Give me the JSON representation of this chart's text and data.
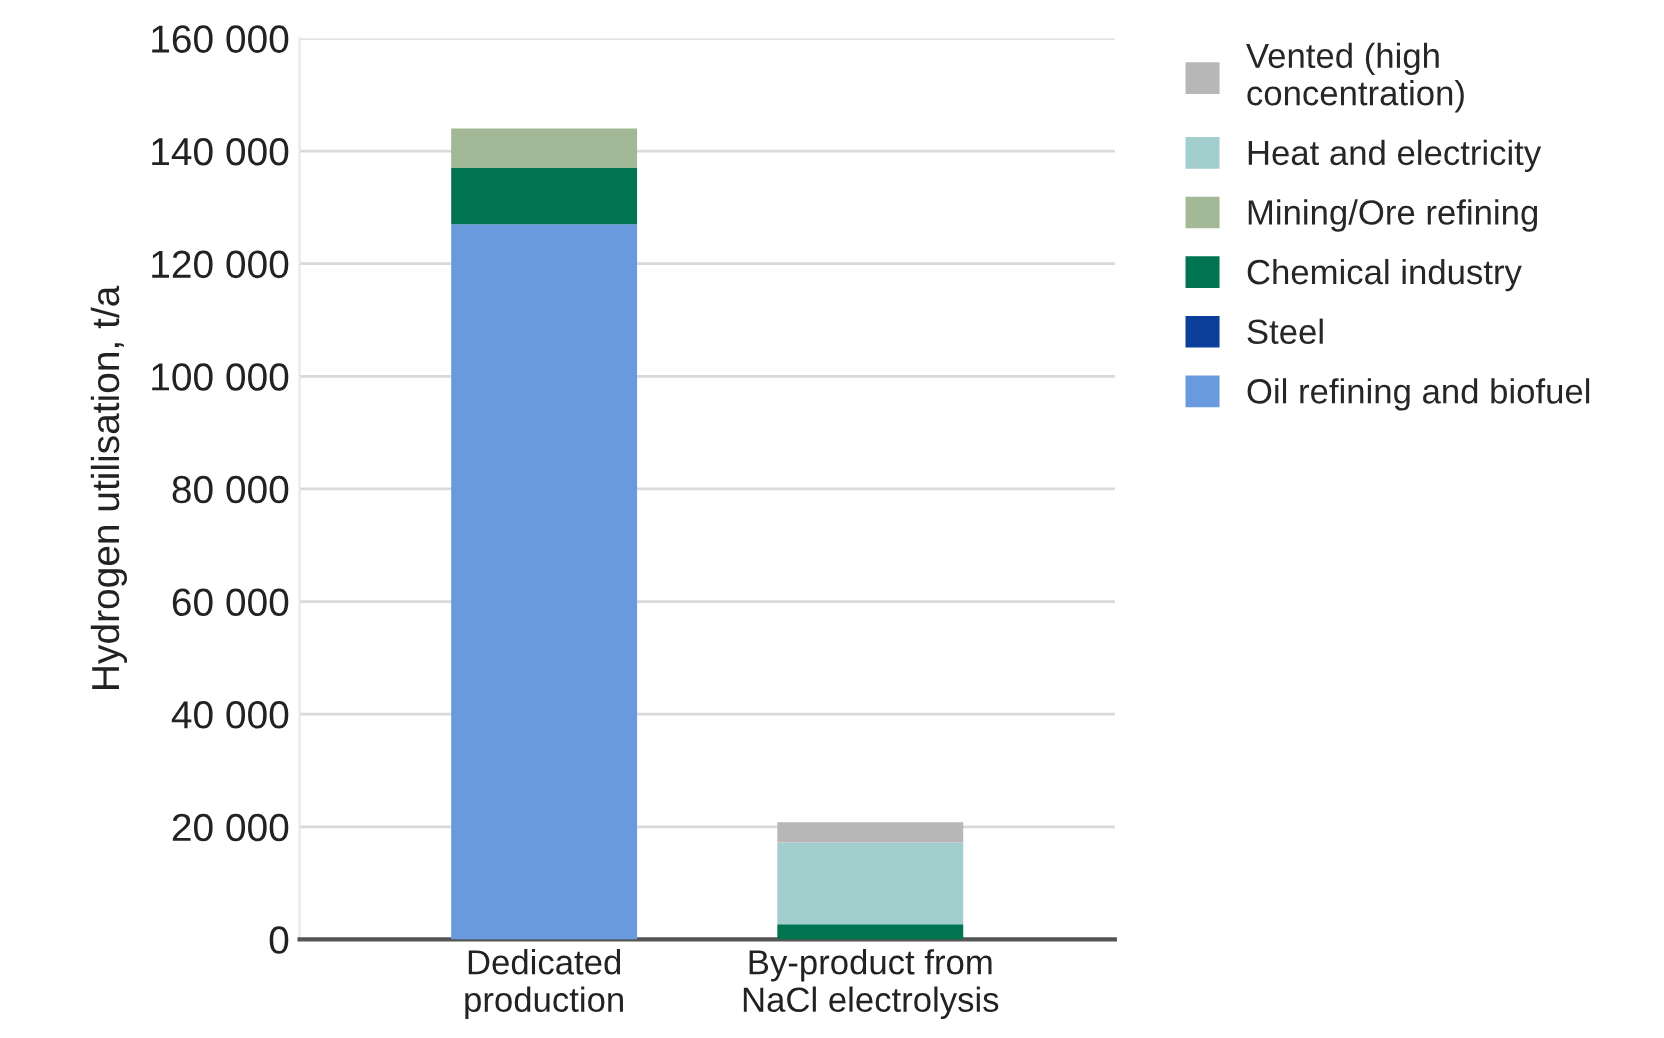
{
  "chart_data": {
    "type": "bar",
    "stacked": true,
    "ylabel": "Hydrogen utilisation, t/a",
    "categories": [
      "Dedicated\nproduction",
      "By-product from\nNaCl electrolysis"
    ],
    "series": [
      {
        "name": "Oil refining and biofuel",
        "color": "#6a9ade",
        "values": [
          127000,
          0
        ]
      },
      {
        "name": "Steel",
        "color": "#0b3f9b",
        "values": [
          0,
          0
        ]
      },
      {
        "name": "Chemical industry",
        "color": "#007350",
        "values": [
          10000,
          2700
        ]
      },
      {
        "name": "Mining/Ore refining",
        "color": "#a3b896",
        "values": [
          7000,
          0
        ]
      },
      {
        "name": "Heat and electricity",
        "color": "#a2cece",
        "values": [
          0,
          14500
        ]
      },
      {
        "name": "Vented (high\nconcentration)",
        "color": "#b7b7b7",
        "values": [
          0,
          3600
        ]
      }
    ],
    "ylim": [
      0,
      160000
    ],
    "yticks": [
      {
        "value": 0,
        "label": "0"
      },
      {
        "value": 20000,
        "label": "20 000"
      },
      {
        "value": 40000,
        "label": "40 000"
      },
      {
        "value": 60000,
        "label": "60 000"
      },
      {
        "value": 80000,
        "label": "80 000"
      },
      {
        "value": 100000,
        "label": "100 000"
      },
      {
        "value": 120000,
        "label": "120 000"
      },
      {
        "value": 140000,
        "label": "140 000"
      },
      {
        "value": 160000,
        "label": "160 000"
      }
    ],
    "grid": "y",
    "legend": "right"
  }
}
